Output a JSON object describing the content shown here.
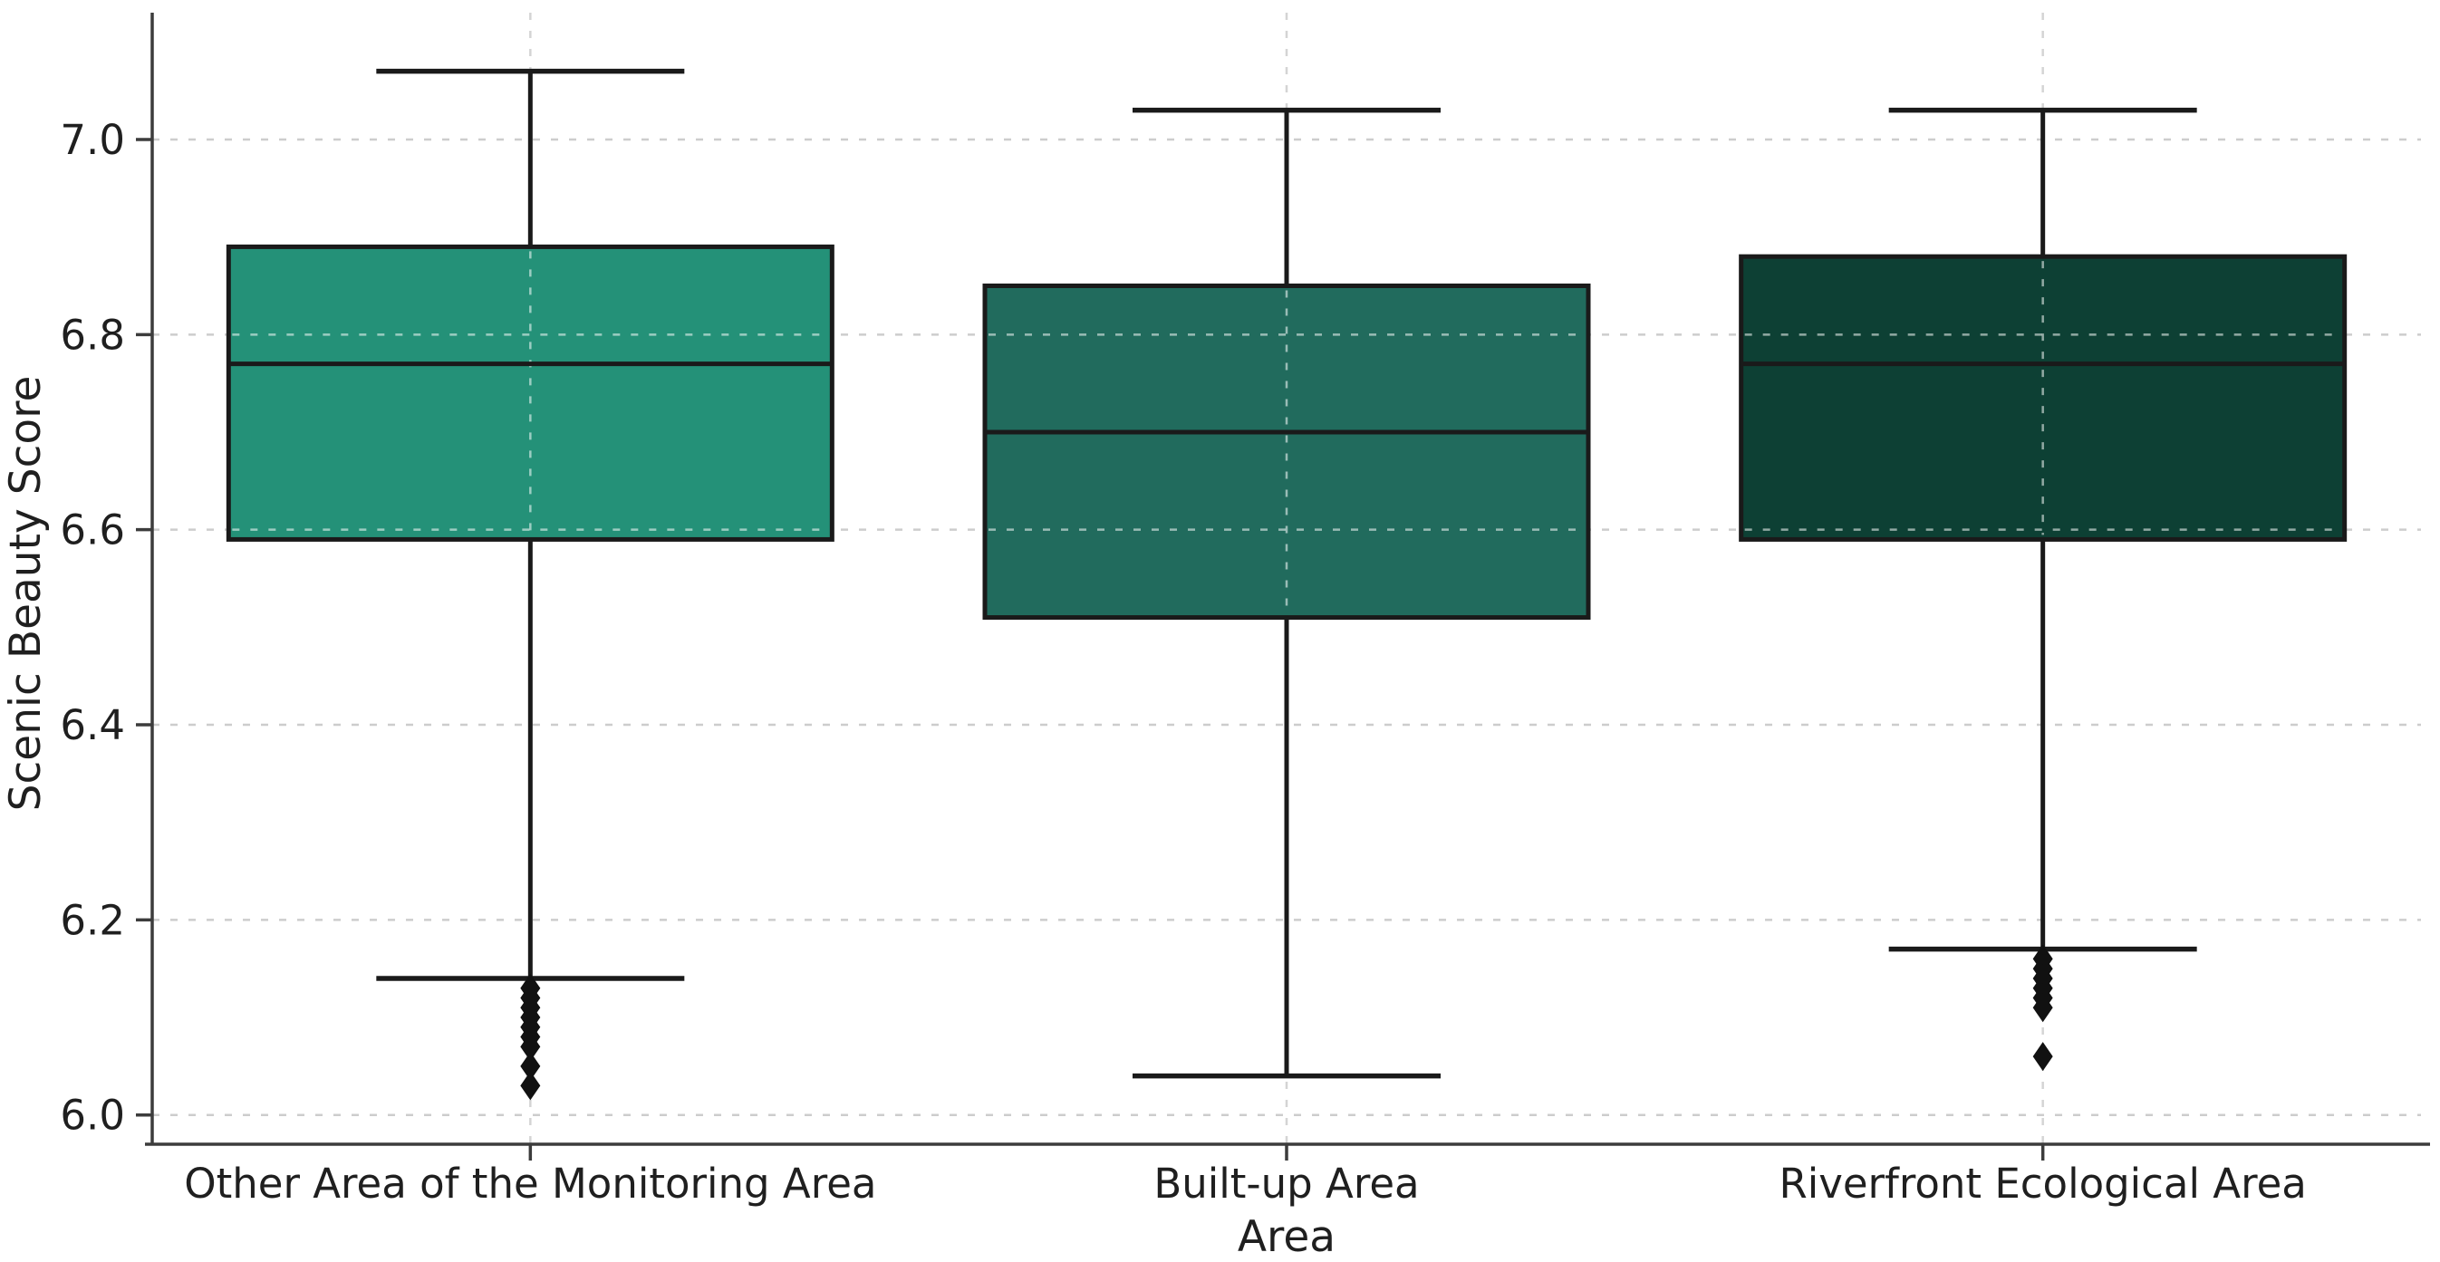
{
  "chart_data": {
    "type": "boxplot",
    "title": "",
    "xlabel": "Area",
    "ylabel": "Scenic Beauty Score",
    "categories": [
      "Other Area of the Monitoring Area",
      "Built-up Area",
      "Riverfront Ecological Area"
    ],
    "ylim": [
      5.97,
      7.13
    ],
    "yticks": [
      6.0,
      6.2,
      6.4,
      6.6,
      6.8,
      7.0
    ],
    "ytick_labels": [
      "6.0",
      "6.2",
      "6.4",
      "6.6",
      "6.8",
      "7.0"
    ],
    "grid": {
      "show": true,
      "style": "dashed",
      "orientation": "horizontal-and-vertical",
      "color": "#cdcdcd"
    },
    "legend": "none",
    "box_edge_color": "#1a1a1a",
    "spine_color": "#3c3c3c",
    "outlier_marker": "thin-diamond",
    "series": [
      {
        "category": "Other Area of the Monitoring Area",
        "fill_color": "#249178",
        "whisker_low": 6.14,
        "q1": 6.59,
        "median": 6.77,
        "q3": 6.89,
        "whisker_high": 7.07,
        "outliers": [
          6.13,
          6.12,
          6.11,
          6.1,
          6.09,
          6.08,
          6.07,
          6.05,
          6.03
        ]
      },
      {
        "category": "Built-up Area",
        "fill_color": "#216B5D",
        "whisker_low": 6.04,
        "q1": 6.51,
        "median": 6.7,
        "q3": 6.85,
        "whisker_high": 7.03,
        "outliers": []
      },
      {
        "category": "Riverfront Ecological Area",
        "fill_color": "#0D4034",
        "whisker_low": 6.17,
        "q1": 6.59,
        "median": 6.77,
        "q3": 6.88,
        "whisker_high": 7.03,
        "outliers": [
          6.16,
          6.15,
          6.14,
          6.13,
          6.12,
          6.11,
          6.06
        ]
      }
    ]
  }
}
